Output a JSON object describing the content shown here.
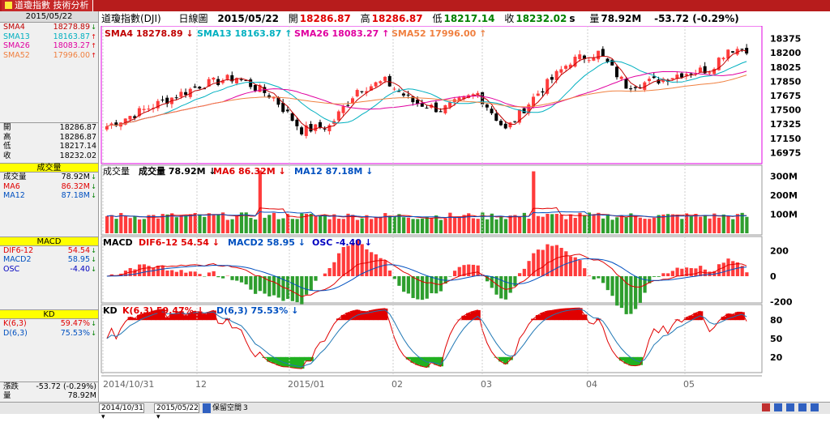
{
  "window": {
    "title": "道瓊指數 技術分析"
  },
  "sidebar": {
    "date": "2015/05/22",
    "sma": [
      {
        "label": "SMA4",
        "value": "18278.89",
        "color": "#c00000",
        "arrow": "↓"
      },
      {
        "label": "SMA13",
        "value": "18163.87",
        "color": "#00b0c0",
        "arrow": "↑"
      },
      {
        "label": "SMA26",
        "value": "18083.27",
        "color": "#e000a0",
        "arrow": "↑"
      },
      {
        "label": "SMA52",
        "value": "17996.00",
        "color": "#f08040",
        "arrow": "↑"
      }
    ],
    "ohlc": [
      {
        "label": "開",
        "value": "18286.87"
      },
      {
        "label": "高",
        "value": "18286.87"
      },
      {
        "label": "低",
        "value": "18217.14"
      },
      {
        "label": "收",
        "value": "18232.02"
      }
    ],
    "vol_title": "成交量",
    "vol": [
      {
        "label": "成交量",
        "value": "78.92M",
        "color": "#000",
        "arrow": "↓"
      },
      {
        "label": "MA6",
        "value": "86.32M",
        "color": "#e00000",
        "arrow": "↓"
      },
      {
        "label": "MA12",
        "value": "87.18M",
        "color": "#0050c0",
        "arrow": "↓"
      }
    ],
    "macd_title": "MACD",
    "macd": [
      {
        "label": "DIF6-12",
        "value": "54.54",
        "color": "#e00000",
        "arrow": "↓"
      },
      {
        "label": "MACD2",
        "value": "58.95",
        "color": "#0050c0",
        "arrow": "↓"
      },
      {
        "label": "OSC",
        "value": "-4.40",
        "color": "#0000c0",
        "arrow": "↓"
      }
    ],
    "kd_title": "KD",
    "kd": [
      {
        "label": "K(6,3)",
        "value": "59.47%",
        "color": "#e00000",
        "arrow": "↓"
      },
      {
        "label": "D(6,3)",
        "value": "75.53%",
        "color": "#0050c0",
        "arrow": "↓"
      }
    ],
    "change": {
      "label": "漲跌",
      "value": "-53.72 (-0.29%)"
    },
    "volume": {
      "label": "量",
      "value": "78.92M"
    }
  },
  "infobar": {
    "name": "道瓊指數(DJI)",
    "period": "日線圖",
    "date": "2015/05/22",
    "open_label": "開",
    "open": "18286.87",
    "high_label": "高",
    "high": "18286.87",
    "low_label": "低",
    "low": "18217.14",
    "close_label": "收",
    "close": "18232.02",
    "close_suffix": "s",
    "vol_label": "量",
    "vol": "78.92M",
    "change": "-53.72 (-0.29%)"
  },
  "price_header": {
    "sma4": "SMA4 18278.89",
    "sma13": "SMA13 18163.87",
    "sma26": "SMA26 18083.27",
    "sma52": "SMA52 17996.00"
  },
  "vol_header": {
    "vol": "成交量 78.92M",
    "ma6": "MA6 86.32M",
    "ma12": "MA12 87.18M",
    "title": "成交量"
  },
  "macd_header": {
    "title": "MACD",
    "dif": "DIF6-12 54.54",
    "macd2": "MACD2 58.95",
    "osc": "OSC -4.40"
  },
  "kd_header": {
    "title": "KD",
    "k": "K(6,3) 59.47%",
    "d": "D(6,3) 75.53%"
  },
  "axes": {
    "price_ticks": [
      "18375",
      "18200",
      "18025",
      "17850",
      "17675",
      "17500",
      "17325",
      "17150",
      "16975"
    ],
    "vol_ticks": [
      "300M",
      "200M",
      "100M"
    ],
    "macd_ticks": [
      "200",
      "0",
      "-200"
    ],
    "kd_ticks": [
      "80",
      "50",
      "20"
    ],
    "x_labels": [
      "2014/10/31",
      "12",
      "2015/01",
      "02",
      "03",
      "04",
      "05"
    ]
  },
  "bottom": {
    "from": "2014/10/31",
    "to": "2015/05/22",
    "keep": "保留空間",
    "keep_val": "3"
  },
  "colors": {
    "up": "#ff3b3b",
    "down": "#2e9e2e",
    "border": "#e000e0",
    "titlebar": "#b71c1c"
  }
}
